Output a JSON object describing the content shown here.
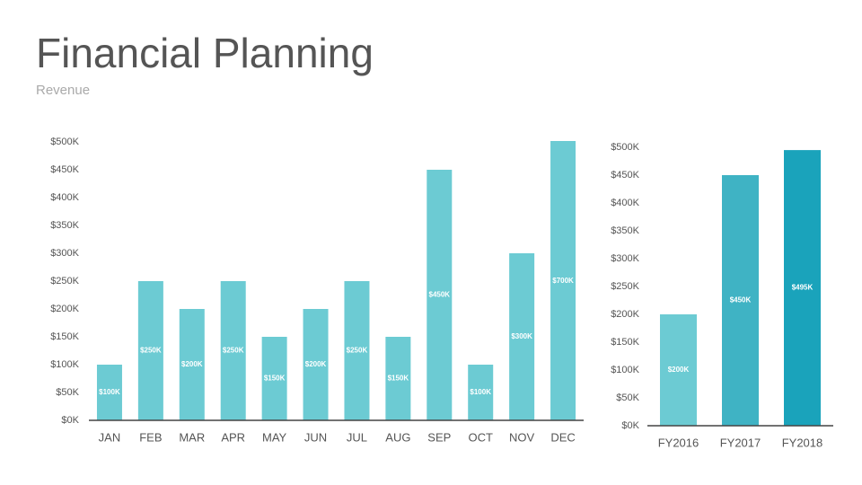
{
  "header": {
    "title": "Financial Planning",
    "subtitle": "Revenue"
  },
  "chart_data": [
    {
      "type": "bar",
      "categories": [
        "JAN",
        "FEB",
        "MAR",
        "APR",
        "MAY",
        "JUN",
        "JUL",
        "AUG",
        "SEP",
        "OCT",
        "NOV",
        "DEC"
      ],
      "values": [
        100,
        250,
        200,
        250,
        150,
        200,
        250,
        150,
        450,
        100,
        300,
        700
      ],
      "value_labels": [
        "$100K",
        "$250K",
        "$200K",
        "$250K",
        "$150K",
        "$200K",
        "$250K",
        "$150K",
        "$450K",
        "$100K",
        "$300K",
        "$700K"
      ],
      "color": "#6ccbd3",
      "ylim": [
        0,
        500
      ],
      "yticks": [
        {
          "value": 0,
          "label": "$0K"
        },
        {
          "value": 50,
          "label": "$50K"
        },
        {
          "value": 100,
          "label": "$100K"
        },
        {
          "value": 150,
          "label": "$150K"
        },
        {
          "value": 200,
          "label": "$200K"
        },
        {
          "value": 250,
          "label": "$250K"
        },
        {
          "value": 300,
          "label": "$300K"
        },
        {
          "value": 350,
          "label": "$350K"
        },
        {
          "value": 400,
          "label": "$400K"
        },
        {
          "value": 450,
          "label": "$450K"
        },
        {
          "value": 500,
          "label": "$500K"
        }
      ]
    },
    {
      "type": "bar",
      "categories": [
        "FY2016",
        "FY2017",
        "FY2018"
      ],
      "values": [
        200,
        450,
        495
      ],
      "value_labels": [
        "$200K",
        "$450K",
        "$495K"
      ],
      "colors": [
        "#6ccbd3",
        "#3fb3c4",
        "#1aa3bb"
      ],
      "ylim": [
        0,
        500
      ],
      "yticks": [
        {
          "value": 0,
          "label": "$0K"
        },
        {
          "value": 50,
          "label": "$50K"
        },
        {
          "value": 100,
          "label": "$100K"
        },
        {
          "value": 150,
          "label": "$150K"
        },
        {
          "value": 200,
          "label": "$200K"
        },
        {
          "value": 250,
          "label": "$250K"
        },
        {
          "value": 300,
          "label": "$300K"
        },
        {
          "value": 350,
          "label": "$350K"
        },
        {
          "value": 400,
          "label": "$400K"
        },
        {
          "value": 450,
          "label": "$450K"
        },
        {
          "value": 500,
          "label": "$500K"
        }
      ]
    }
  ]
}
